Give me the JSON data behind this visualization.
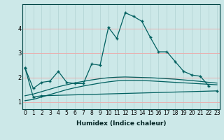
{
  "xlabel": "Humidex (Indice chaleur)",
  "x": [
    0,
    1,
    2,
    3,
    4,
    5,
    6,
    7,
    8,
    9,
    10,
    11,
    12,
    13,
    14,
    15,
    16,
    17,
    18,
    19,
    20,
    21,
    22,
    23
  ],
  "line1": [
    2.4,
    1.55,
    1.8,
    1.85,
    2.25,
    1.8,
    1.75,
    1.75,
    2.55,
    2.5,
    4.05,
    3.6,
    4.65,
    4.5,
    4.3,
    3.65,
    3.05,
    3.05,
    2.65,
    2.25,
    2.1,
    2.05,
    1.65,
    null
  ],
  "line2_x": [
    0,
    1,
    2,
    23
  ],
  "line2_y": [
    2.4,
    1.2,
    1.25,
    1.45
  ],
  "line3": [
    1.05,
    1.1,
    1.2,
    1.3,
    1.4,
    1.5,
    1.58,
    1.65,
    1.71,
    1.77,
    1.82,
    1.86,
    1.88,
    1.88,
    1.87,
    1.86,
    1.84,
    1.82,
    1.8,
    1.78,
    1.76,
    1.74,
    1.72,
    1.7
  ],
  "line4": [
    1.25,
    1.32,
    1.42,
    1.52,
    1.62,
    1.7,
    1.78,
    1.84,
    1.9,
    1.95,
    1.99,
    2.01,
    2.02,
    2.01,
    2.0,
    1.99,
    1.97,
    1.95,
    1.93,
    1.9,
    1.87,
    1.84,
    1.8,
    1.77
  ],
  "bg_color": "#cce8e8",
  "grid_color_y": "#e8b0b0",
  "grid_color_x": "#b8d8d8",
  "line_color": "#006060",
  "ylim": [
    0.7,
    5.0
  ],
  "xlim": [
    -0.3,
    23.3
  ],
  "yticks": [
    1,
    2,
    3,
    4
  ],
  "xticks": [
    0,
    1,
    2,
    3,
    4,
    5,
    6,
    7,
    8,
    9,
    10,
    11,
    12,
    13,
    14,
    15,
    16,
    17,
    18,
    19,
    20,
    21,
    22,
    23
  ],
  "xlabel_fontsize": 6.5,
  "tick_fontsize": 5.5,
  "lw": 0.9,
  "ms": 2.0
}
